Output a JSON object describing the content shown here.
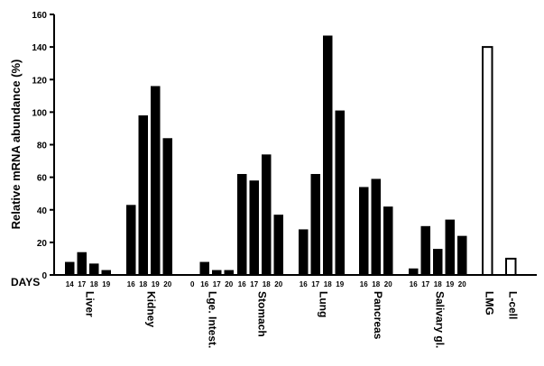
{
  "chart_data": {
    "type": "bar",
    "title": "",
    "ylabel": "Relative mRNA abundance (%)",
    "xlabel": "DAYS",
    "ylim": [
      0,
      160
    ],
    "yticks": [
      0,
      20,
      40,
      60,
      80,
      100,
      120,
      140,
      160
    ],
    "grid": false,
    "legend": "none",
    "groups": [
      {
        "name": "Liver",
        "days": [
          "14",
          "17",
          "18",
          "19"
        ],
        "values": [
          8,
          14,
          7,
          3
        ],
        "style": "filled"
      },
      {
        "name": "Kidney",
        "days": [
          "16",
          "18",
          "19",
          "20"
        ],
        "values": [
          43,
          98,
          116,
          84
        ],
        "style": "filled"
      },
      {
        "name": "Lge. Intest.",
        "days": [
          "0",
          "16",
          "17",
          "20"
        ],
        "values": [
          0,
          8,
          3,
          3
        ],
        "style": "filled"
      },
      {
        "name": "Stomach",
        "days": [
          "16",
          "17",
          "18",
          "20"
        ],
        "values": [
          62,
          58,
          74,
          37
        ],
        "style": "filled"
      },
      {
        "name": "Lung",
        "days": [
          "16",
          "17",
          "18",
          "19"
        ],
        "values": [
          28,
          62,
          147,
          101
        ],
        "style": "filled"
      },
      {
        "name": "Pancreas",
        "days": [
          "16",
          "18",
          "20"
        ],
        "values": [
          54,
          59,
          42
        ],
        "style": "filled"
      },
      {
        "name": "Salivary gl.",
        "days": [
          "16",
          "17",
          "18",
          "19",
          "20"
        ],
        "values": [
          4,
          30,
          16,
          34,
          24
        ],
        "style": "filled"
      },
      {
        "name": "LMG",
        "days": [],
        "values": [
          140
        ],
        "style": "open"
      },
      {
        "name": "L-cell",
        "days": [],
        "values": [
          10
        ],
        "style": "open"
      }
    ],
    "colors": {
      "bar_fill": "#000000",
      "open_bar_fill": "#ffffff",
      "axis": "#000000"
    }
  }
}
